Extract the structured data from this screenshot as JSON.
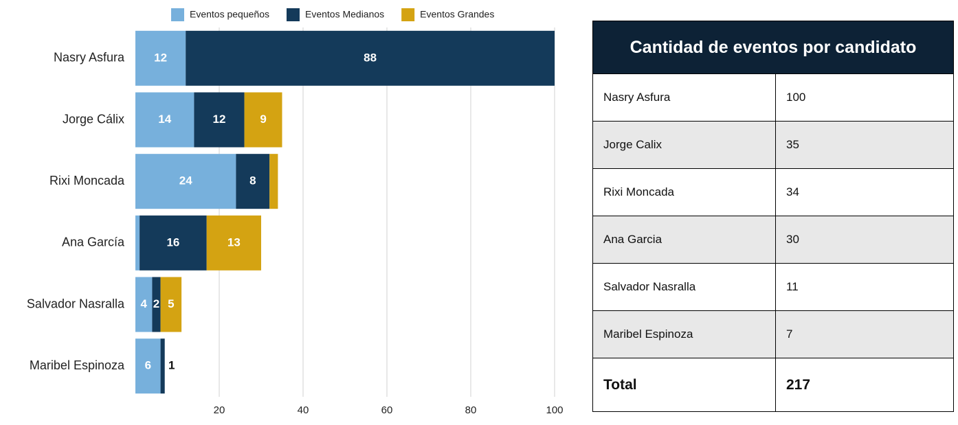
{
  "chart_data": {
    "type": "stacked-bar-horizontal",
    "categories": [
      "Nasry Asfura",
      "Jorge Cálix",
      "Rixi Moncada",
      "Ana García",
      "Salvador Nasralla",
      "Maribel Espinoza"
    ],
    "series": [
      {
        "name": "Eventos pequeños",
        "color": "#77b0dc",
        "values": [
          12,
          14,
          24,
          1,
          4,
          6
        ],
        "value_labels": [
          "12",
          "14",
          "24",
          null,
          "4",
          "6"
        ]
      },
      {
        "name": "Eventos Medianos",
        "color": "#143a5a",
        "values": [
          88,
          12,
          8,
          16,
          2,
          1
        ],
        "value_labels": [
          "88",
          "12",
          "8",
          "16",
          "2",
          "1"
        ]
      },
      {
        "name": "Eventos Grandes",
        "color": "#d4a312",
        "values": [
          0,
          9,
          2,
          13,
          5,
          0
        ],
        "value_labels": [
          null,
          "9",
          null,
          "13",
          "5",
          null
        ]
      }
    ],
    "xlim": [
      0,
      100
    ],
    "xticks": [
      20,
      40,
      60,
      80,
      100
    ],
    "grid": true,
    "legend": "top"
  },
  "table": {
    "title": "Cantidad de eventos por candidato",
    "rows": [
      [
        "Nasry Asfura",
        "100"
      ],
      [
        "Jorge Calix",
        "35"
      ],
      [
        "Rixi Moncada",
        "34"
      ],
      [
        "Ana Garcia",
        "30"
      ],
      [
        "Salvador Nasralla",
        "11"
      ],
      [
        "Maribel Espinoza",
        "7"
      ]
    ],
    "total": [
      "Total",
      "217"
    ]
  }
}
